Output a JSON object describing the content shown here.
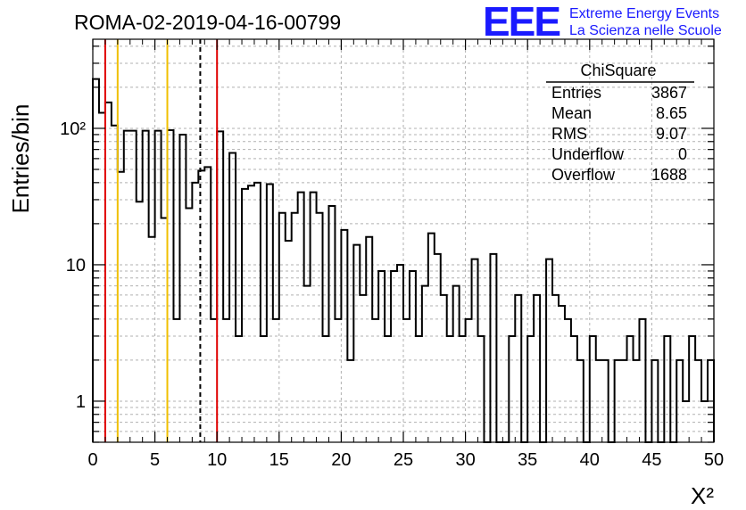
{
  "header": {
    "title": "ROMA-02-2019-04-16-00799",
    "logo_text": "EEE",
    "logo_line1": "Extreme Energy Events",
    "logo_line2": "La Scienza nelle Scuole"
  },
  "stats_box": {
    "name": "ChiSquare",
    "rows": [
      {
        "label": "Entries",
        "value": "3867"
      },
      {
        "label": "Mean",
        "value": "8.65"
      },
      {
        "label": "RMS",
        "value": "9.07"
      },
      {
        "label": "Underflow",
        "value": "0"
      },
      {
        "label": "Overflow",
        "value": "1688"
      }
    ]
  },
  "chart_data": {
    "type": "bar",
    "style": "step-histogram",
    "xlabel": "X²",
    "ylabel": "Entries/bin",
    "xlim": [
      0,
      50
    ],
    "ylim": [
      0.5,
      450
    ],
    "yscale": "log",
    "grid": true,
    "bin_width": 0.5,
    "x_ticks": [
      0,
      5,
      10,
      15,
      20,
      25,
      30,
      35,
      40,
      45,
      50
    ],
    "x_tick_labels": [
      "0",
      "5",
      "10",
      "15",
      "20",
      "25",
      "30",
      "35",
      "40",
      "45",
      "50"
    ],
    "y_ticks": [
      1,
      10,
      100
    ],
    "y_tick_labels": [
      "1",
      "10",
      "10²"
    ],
    "values": [
      230,
      130,
      155,
      105,
      48,
      96,
      96,
      29,
      96,
      16,
      96,
      22,
      97,
      4,
      90,
      26,
      40,
      49,
      52,
      4,
      95,
      4,
      66,
      3,
      36,
      38,
      40,
      3,
      39,
      4,
      24,
      15,
      24,
      34,
      7,
      34,
      24,
      3,
      27,
      4,
      18,
      2,
      14,
      6,
      16,
      4,
      9,
      3,
      9,
      10,
      4,
      9,
      3,
      7,
      17,
      12,
      6,
      3,
      7,
      3,
      4,
      11,
      3,
      0,
      12,
      0,
      0,
      3,
      6,
      0,
      3,
      6,
      0,
      11,
      6,
      5,
      4,
      3,
      2,
      0,
      3,
      2,
      2,
      0,
      2,
      2,
      3,
      2,
      4,
      0,
      2,
      0,
      3,
      0,
      2,
      1,
      3,
      2,
      1,
      2
    ],
    "reference_lines": [
      {
        "x": 1,
        "color": "#e00000",
        "style": "solid"
      },
      {
        "x": 2,
        "color": "#f0c000",
        "style": "solid"
      },
      {
        "x": 6,
        "color": "#f0c000",
        "style": "solid"
      },
      {
        "x": 8.65,
        "color": "#000000",
        "style": "dashed"
      },
      {
        "x": 10,
        "color": "#e00000",
        "style": "solid"
      }
    ]
  }
}
